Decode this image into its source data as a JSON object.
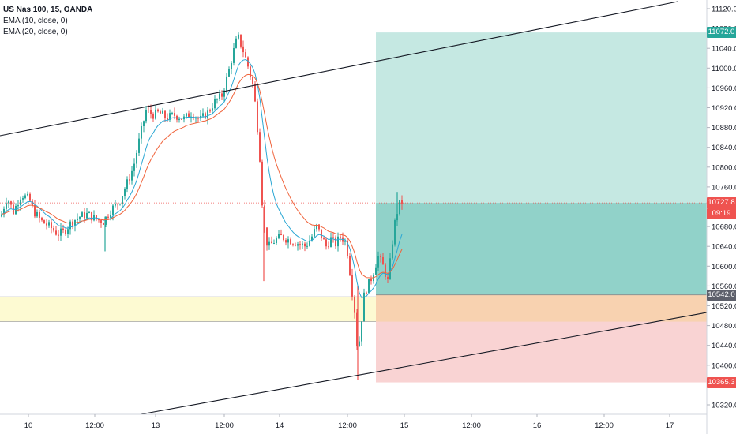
{
  "legend": {
    "symbol": "US Nas 100, 15, OANDA",
    "ema1": "EMA (10, close, 0)",
    "ema2": "EMA (20, close, 0)"
  },
  "colors": {
    "up": "#26a69a",
    "down": "#ef5350",
    "ema10": "#2aa7d4",
    "ema20": "#f0643c",
    "price_line": "#ef5350",
    "target_zone": "#c5e8e2",
    "target_zone_dark": "#7fcbc0",
    "stop_zone": "#f9d3d3",
    "stop_zone_dark": "#f8d2a8",
    "yellow_zone": "#fdfad2"
  },
  "price_tags": {
    "target": "11072.0",
    "current": "10727.8",
    "countdown": "09:19",
    "entry": "10542.0",
    "stop": "10365.3"
  },
  "chart_data": {
    "type": "candlestick",
    "symbol": "US Nas 100",
    "timeframe": "15",
    "source": "OANDA",
    "ylim": [
      10290,
      11150
    ],
    "y_ticks": [
      "11120.0",
      "11080.0",
      "11040.0",
      "11000.0",
      "10960.0",
      "10920.0",
      "10880.0",
      "10840.0",
      "10800.0",
      "10760.0",
      "10720.0",
      "10680.0",
      "10640.0",
      "10600.0",
      "10560.0",
      "10520.0",
      "10480.0",
      "10440.0",
      "10400.0",
      "10360.0",
      "10320.0"
    ],
    "x_ticks": [
      "10",
      "12:00",
      "13",
      "12:00",
      "14",
      "12:00",
      "15",
      "12:00",
      "16",
      "12:00",
      "17"
    ],
    "price_path": [
      [
        0,
        10700
      ],
      [
        8,
        10740
      ],
      [
        16,
        10710
      ],
      [
        26,
        10745
      ],
      [
        36,
        10735
      ],
      [
        42,
        10710
      ],
      [
        52,
        10690
      ],
      [
        62,
        10680
      ],
      [
        72,
        10665
      ],
      [
        80,
        10670
      ],
      [
        90,
        10690
      ],
      [
        100,
        10700
      ],
      [
        110,
        10705
      ],
      [
        120,
        10695
      ],
      [
        130,
        10690
      ],
      [
        140,
        10715
      ],
      [
        150,
        10730
      ],
      [
        158,
        10760
      ],
      [
        168,
        10800
      ],
      [
        176,
        10860
      ],
      [
        184,
        10915
      ],
      [
        192,
        10905
      ],
      [
        200,
        10910
      ],
      [
        210,
        10900
      ],
      [
        220,
        10905
      ],
      [
        232,
        10898
      ],
      [
        242,
        10910
      ],
      [
        252,
        10895
      ],
      [
        262,
        10910
      ],
      [
        270,
        10930
      ],
      [
        280,
        10945
      ],
      [
        288,
        10990
      ],
      [
        294,
        11030
      ],
      [
        300,
        11065
      ],
      [
        306,
        11040
      ],
      [
        312,
        11010
      ],
      [
        316,
        10985
      ],
      [
        320,
        10960
      ],
      [
        324,
        10900
      ],
      [
        328,
        10820
      ],
      [
        332,
        10700
      ],
      [
        336,
        10650
      ],
      [
        340,
        10640
      ],
      [
        346,
        10650
      ],
      [
        354,
        10660
      ],
      [
        362,
        10655
      ],
      [
        370,
        10650
      ],
      [
        378,
        10645
      ],
      [
        386,
        10640
      ],
      [
        394,
        10660
      ],
      [
        400,
        10680
      ],
      [
        406,
        10660
      ],
      [
        412,
        10640
      ],
      [
        418,
        10655
      ],
      [
        424,
        10645
      ],
      [
        430,
        10660
      ],
      [
        436,
        10650
      ],
      [
        440,
        10620
      ],
      [
        444,
        10560
      ],
      [
        448,
        10510
      ],
      [
        452,
        10420
      ],
      [
        456,
        10480
      ],
      [
        460,
        10540
      ],
      [
        464,
        10560
      ],
      [
        468,
        10570
      ],
      [
        472,
        10590
      ],
      [
        478,
        10620
      ],
      [
        484,
        10600
      ],
      [
        490,
        10570
      ],
      [
        494,
        10620
      ],
      [
        498,
        10680
      ],
      [
        502,
        10710
      ],
      [
        506,
        10730
      ],
      [
        510,
        10727.8
      ]
    ],
    "overlays": {
      "target": 11072.0,
      "current_price": 10727.8,
      "entry": 10542.0,
      "stop": 10365.3,
      "yellow_zone": [
        10488,
        10538
      ]
    }
  }
}
